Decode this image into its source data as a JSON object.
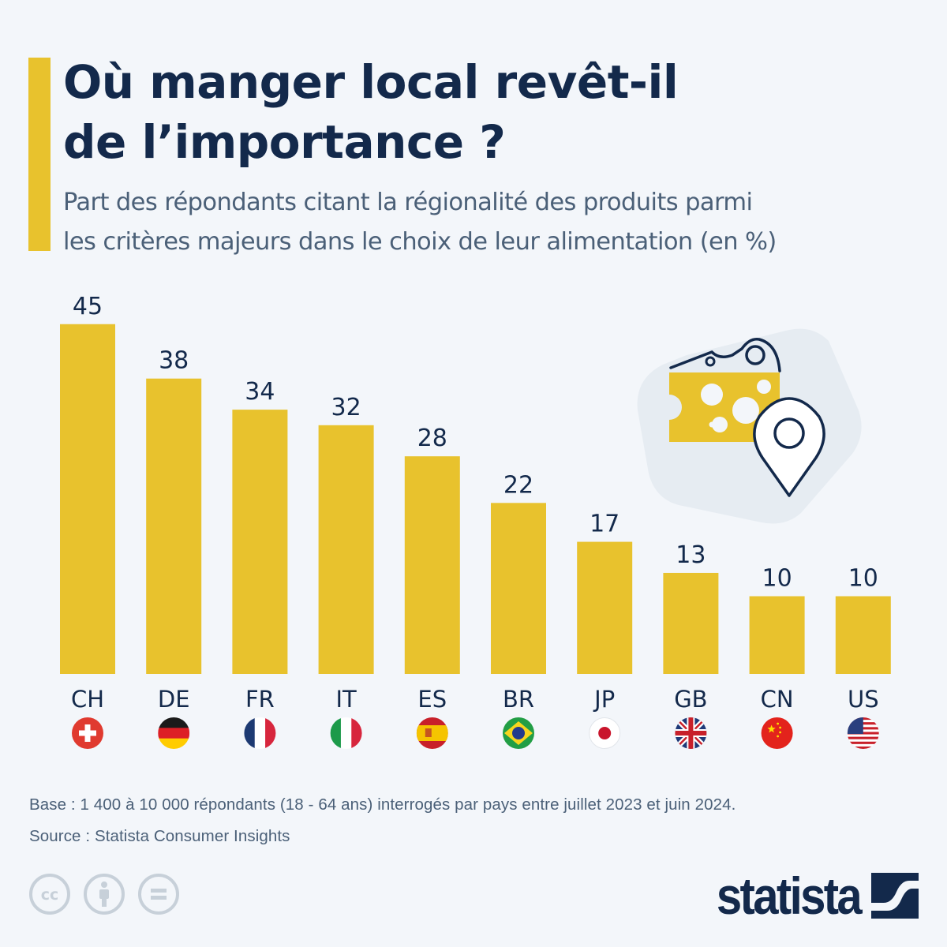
{
  "header": {
    "title_line1": "Où manger local revêt-il",
    "title_line2": "de l’importance ?",
    "subtitle_line1": "Part des répondants citant la régionalité des produits parmi",
    "subtitle_line2": "les critères majeurs dans le choix de leur alimentation (en %)"
  },
  "chart_data": {
    "type": "bar",
    "title": "Où manger local revêt-il de l’importance ?",
    "subtitle": "Part des répondants citant la régionalité des produits parmi les critères majeurs dans le choix de leur alimentation (en %)",
    "xlabel": "",
    "ylabel": "",
    "ylim": [
      0,
      45
    ],
    "grid": false,
    "categories": [
      "CH",
      "DE",
      "FR",
      "IT",
      "ES",
      "BR",
      "JP",
      "GB",
      "CN",
      "US"
    ],
    "values": [
      45,
      38,
      34,
      32,
      28,
      22,
      17,
      13,
      10,
      10
    ],
    "value_labels": [
      "45",
      "38",
      "34",
      "32",
      "28",
      "22",
      "17",
      "13",
      "10",
      "10"
    ],
    "flags": [
      "switzerland-flag",
      "germany-flag",
      "france-flag",
      "italy-flag",
      "spain-flag",
      "brazil-flag",
      "japan-flag",
      "united-kingdom-flag",
      "china-flag",
      "united-states-flag"
    ],
    "bar_color": "#e8c22d"
  },
  "illustration": {
    "icon": "cheese-with-location-pin-icon"
  },
  "footer": {
    "base_note": "Base : 1 400 à 10 000 répondants (18 - 64 ans) interrogés par pays entre juillet 2023 et juin 2024.",
    "source": "Source : Statista Consumer Insights",
    "license_icons": [
      "creative-commons-icon",
      "attribution-icon",
      "no-derivatives-icon"
    ],
    "brand": "statista"
  },
  "colors": {
    "background": "#f3f6fa",
    "accent": "#e8c22d",
    "title": "#13294b",
    "subtitle": "#4b6078"
  }
}
